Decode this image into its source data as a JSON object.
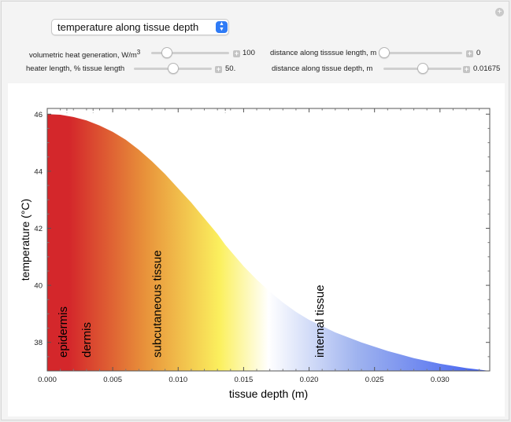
{
  "plot_selector": {
    "value": "temperature along tissue depth"
  },
  "controls": {
    "heat_generation": {
      "label": "volumetric heat generation, W/m",
      "superscript": "3",
      "value": "100",
      "fraction": 0.2
    },
    "heater_length": {
      "label": "heater length, % tissue length",
      "value": "50.",
      "fraction": 0.5
    },
    "distance_length": {
      "label": "distance along tisssue length, m",
      "value": "0",
      "fraction": 0.0
    },
    "distance_depth": {
      "label": "distance along tissue depth, m",
      "value": "0.01675",
      "fraction": 0.5
    }
  },
  "chart_data": {
    "type": "area",
    "xlabel": "tissue depth (m)",
    "ylabel": "temperature (°C)",
    "xlim": [
      0,
      0.0338
    ],
    "ylim": [
      37,
      46.2
    ],
    "x_ticks": [
      "0.000",
      "0.005",
      "0.010",
      "0.015",
      "0.020",
      "0.025",
      "0.030"
    ],
    "y_ticks": [
      "38",
      "40",
      "42",
      "44",
      "46"
    ],
    "x": [
      0,
      0.001,
      0.002,
      0.003,
      0.004,
      0.005,
      0.006,
      0.007,
      0.008,
      0.009,
      0.01,
      0.011,
      0.012,
      0.013,
      0.0136,
      0.015,
      0.016,
      0.017,
      0.018,
      0.019,
      0.02,
      0.022,
      0.024,
      0.026,
      0.028,
      0.03,
      0.032,
      0.0338
    ],
    "y": [
      46.0,
      45.98,
      45.9,
      45.78,
      45.6,
      45.38,
      45.1,
      44.75,
      44.35,
      43.9,
      43.4,
      42.9,
      42.35,
      41.8,
      41.42,
      40.67,
      40.2,
      39.78,
      39.4,
      39.07,
      38.79,
      38.35,
      38.0,
      37.7,
      37.45,
      37.25,
      37.1,
      37.0
    ],
    "region_boundaries": [
      0.0015,
      0.0035,
      0.0136
    ],
    "region_labels": [
      "epidermis",
      "dermis",
      "subcutaneous tissue",
      "internal tissue"
    ],
    "region_label_x": [
      0.0012,
      0.003,
      0.0084,
      0.0208
    ],
    "gradient_colors": [
      "#d4272b",
      "#d4272b",
      "#e8913a",
      "#fbf05e",
      "#ffffff",
      "#9fb3ef",
      "#3f5ef0"
    ]
  }
}
